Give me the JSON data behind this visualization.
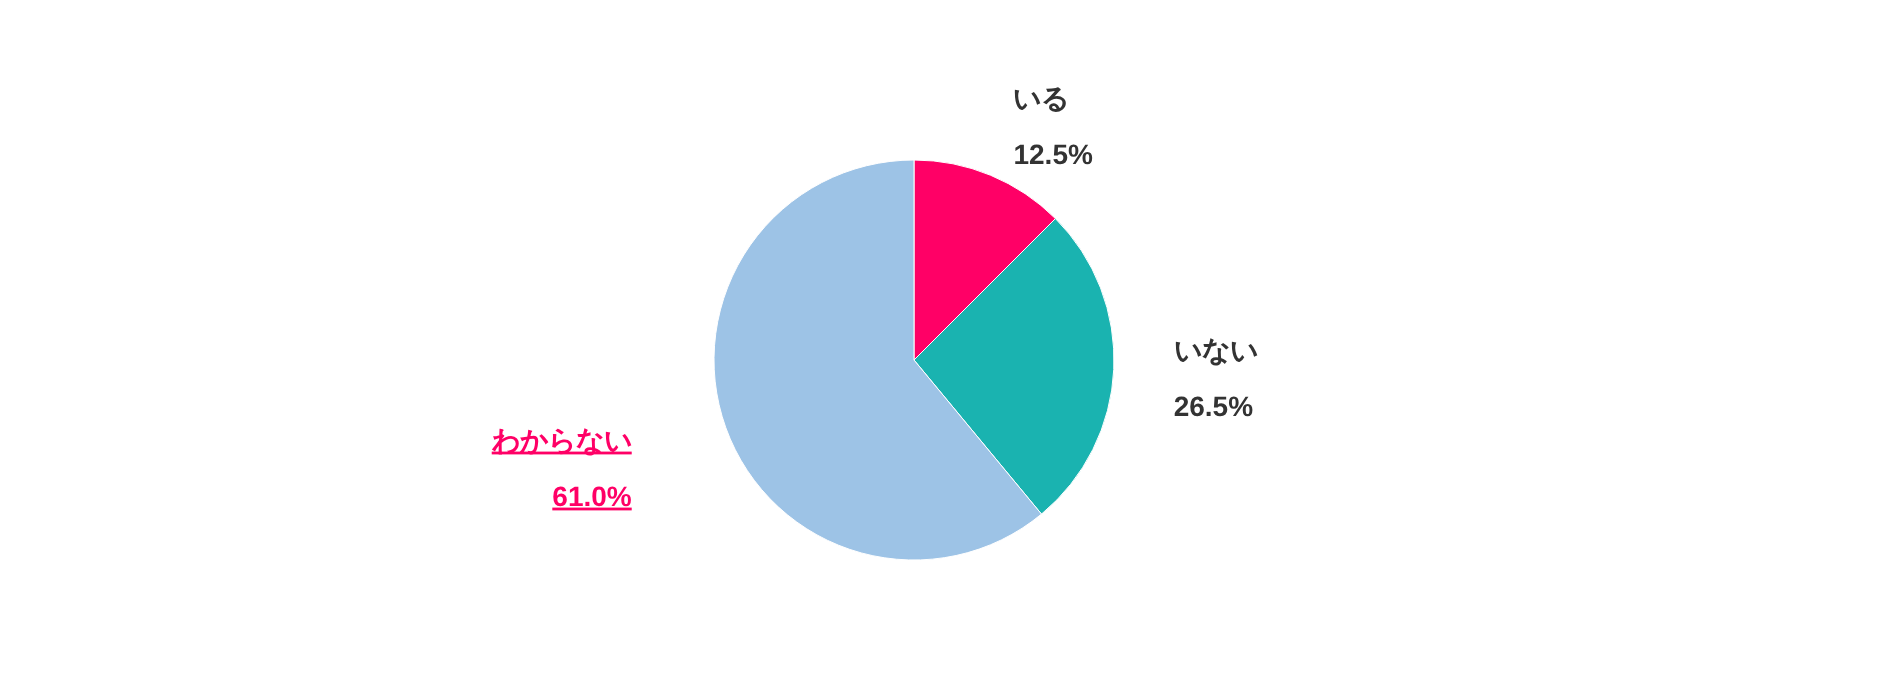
{
  "chart_data": {
    "type": "pie",
    "categories": [
      "いる",
      "いない",
      "わからない"
    ],
    "values": [
      12.5,
      26.5,
      61.0
    ],
    "value_labels": [
      "12.5%",
      "26.5%",
      "61.0%"
    ],
    "colors": [
      "#ff0066",
      "#1ab3b0",
      "#9dc3e6"
    ]
  }
}
